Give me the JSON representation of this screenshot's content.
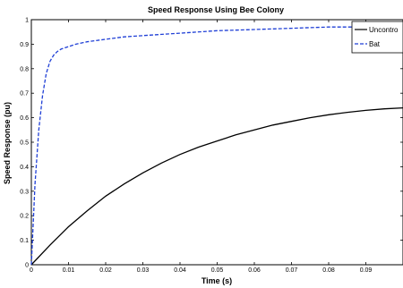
{
  "chart_data": {
    "type": "line",
    "title": "Speed Response Using Bee Colony",
    "xlabel": "Time (s)",
    "ylabel": "Speed Response (pu)",
    "xlim": [
      0,
      0.1
    ],
    "ylim": [
      0,
      1
    ],
    "x_ticks": [
      "0",
      "0.01",
      "0.02",
      "0.03",
      "0.04",
      "0.05",
      "0.06",
      "0.07",
      "0.08",
      "0.09"
    ],
    "y_ticks": [
      "0",
      "0.1",
      "0.2",
      "0.3",
      "0.4",
      "0.5",
      "0.6",
      "0.7",
      "0.8",
      "0.9",
      "1"
    ],
    "grid": false,
    "legend_position": "top-right",
    "series": [
      {
        "name": "Uncontro",
        "color": "#000000",
        "style": "solid",
        "x": [
          0,
          0.005,
          0.01,
          0.015,
          0.02,
          0.025,
          0.03,
          0.035,
          0.04,
          0.045,
          0.05,
          0.055,
          0.06,
          0.065,
          0.07,
          0.075,
          0.08,
          0.085,
          0.09,
          0.095,
          0.1
        ],
        "y": [
          0,
          0.08,
          0.155,
          0.22,
          0.28,
          0.33,
          0.375,
          0.415,
          0.45,
          0.48,
          0.505,
          0.53,
          0.55,
          0.57,
          0.585,
          0.6,
          0.612,
          0.622,
          0.63,
          0.636,
          0.64
        ]
      },
      {
        "name": "Bat",
        "color": "#1f3fd6",
        "style": "dashed",
        "x": [
          0,
          0.001,
          0.002,
          0.003,
          0.004,
          0.005,
          0.006,
          0.007,
          0.008,
          0.01,
          0.012,
          0.015,
          0.02,
          0.025,
          0.03,
          0.04,
          0.05,
          0.06,
          0.07,
          0.08,
          0.09,
          0.1
        ],
        "y": [
          0,
          0.33,
          0.55,
          0.69,
          0.78,
          0.83,
          0.855,
          0.87,
          0.88,
          0.89,
          0.9,
          0.91,
          0.92,
          0.93,
          0.935,
          0.945,
          0.955,
          0.96,
          0.965,
          0.97,
          0.97,
          0.97
        ]
      }
    ]
  }
}
